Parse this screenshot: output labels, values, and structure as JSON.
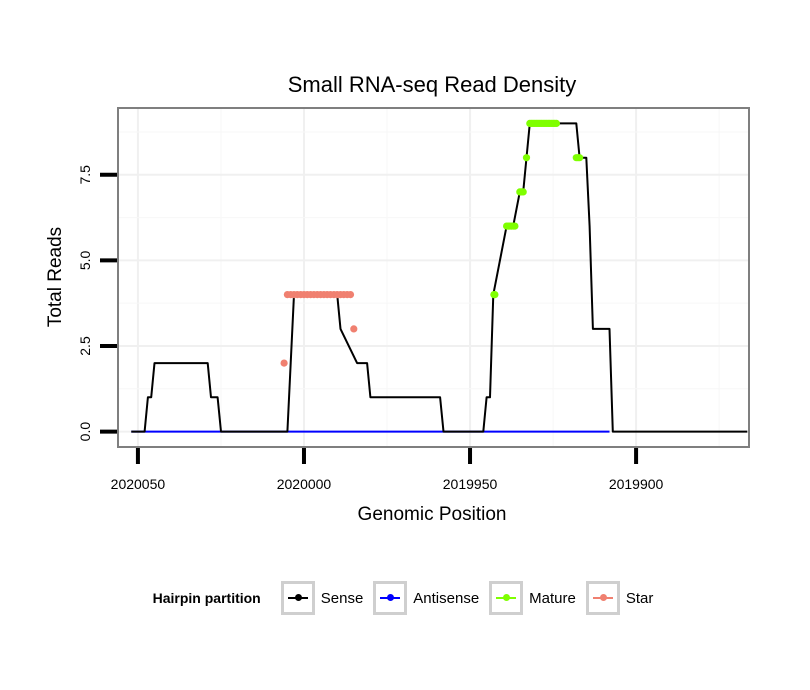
{
  "chart_data": {
    "type": "line",
    "title": "Small RNA-seq Read Density",
    "xlabel": "Genomic Position",
    "ylabel": "Total Reads",
    "xlim": [
      2020056,
      2019866
    ],
    "ylim": [
      -0.45,
      9.45
    ],
    "x_reversed": true,
    "grid": true,
    "x_ticks": [
      2020050,
      2020000,
      2019950,
      2019900
    ],
    "x_tick_labels": [
      "2020050",
      "2020000",
      "2019950",
      "2019900"
    ],
    "y_ticks": [
      0,
      2.5,
      5,
      7.5
    ],
    "y_tick_labels": [
      "0.0",
      "2.5",
      "5.0",
      "7.5"
    ],
    "legend_position": "bottom",
    "legend_title": "Hairpin partition",
    "series": [
      {
        "name": "Sense",
        "color": "#000000",
        "x": [
          2020052,
          2020048,
          2020047,
          2020046,
          2020045,
          2020029,
          2020028,
          2020026,
          2020025,
          2020024,
          2020005,
          2020004,
          2020003,
          2019990,
          2019989,
          2019984,
          2019983,
          2019981,
          2019980,
          2019978,
          2019959,
          2019958,
          2019946,
          2019945,
          2019944,
          2019943,
          2019939,
          2019937,
          2019935,
          2019934,
          2019933,
          2019932,
          2019930,
          2019928,
          2019927,
          2019926,
          2019918,
          2019917,
          2019915,
          2019914,
          2019913,
          2019912,
          2019908,
          2019907,
          2019866.5
        ],
        "y": [
          0,
          0,
          1,
          1,
          2,
          2,
          1,
          1,
          0,
          0,
          0,
          2,
          4,
          4,
          3,
          2,
          2,
          2,
          1,
          1,
          1,
          0,
          0,
          1,
          1,
          4,
          6,
          6,
          7,
          7,
          8,
          9,
          9,
          9,
          9,
          9,
          9,
          8,
          8,
          6,
          3,
          3,
          3,
          0,
          0
        ]
      },
      {
        "name": "Antisense",
        "color": "#0000ff",
        "x": [
          2020052,
          2019908
        ],
        "y": [
          0,
          0
        ]
      },
      {
        "name": "Mature",
        "color": "#7fff00",
        "x": [
          2019942.8,
          2019942.5,
          2019939,
          2019938.5,
          2019938,
          2019937.5,
          2019937,
          2019936.5,
          2019935,
          2019934.5,
          2019934,
          2019933,
          2019932,
          2019931.5,
          2019931,
          2019930.5,
          2019930,
          2019929.5,
          2019929,
          2019928.5,
          2019928,
          2019927.5,
          2019927,
          2019926.5,
          2019926,
          2019925.5,
          2019925,
          2019924.5,
          2019924,
          2019918,
          2019917.5,
          2019917
        ],
        "y": [
          4,
          4,
          6,
          6,
          6,
          6,
          6,
          6,
          7,
          7,
          7,
          8,
          9,
          9,
          9,
          9,
          9,
          9,
          9,
          9,
          9,
          9,
          9,
          9,
          9,
          9,
          9,
          9,
          9,
          8,
          8,
          8
        ]
      },
      {
        "name": "Star",
        "color": "#f08070",
        "x": [
          2020006,
          2020005,
          2020004,
          2020003,
          2020002,
          2020001,
          2020000,
          2019999,
          2019998,
          2019997,
          2019996,
          2019995,
          2019994,
          2019993,
          2019992,
          2019991,
          2019990,
          2019989,
          2019988,
          2019987,
          2019986,
          2019985
        ],
        "y": [
          2,
          4,
          4,
          4,
          4,
          4,
          4,
          4,
          4,
          4,
          4,
          4,
          4,
          4,
          4,
          4,
          4,
          4,
          4,
          4,
          4,
          3
        ]
      }
    ]
  }
}
